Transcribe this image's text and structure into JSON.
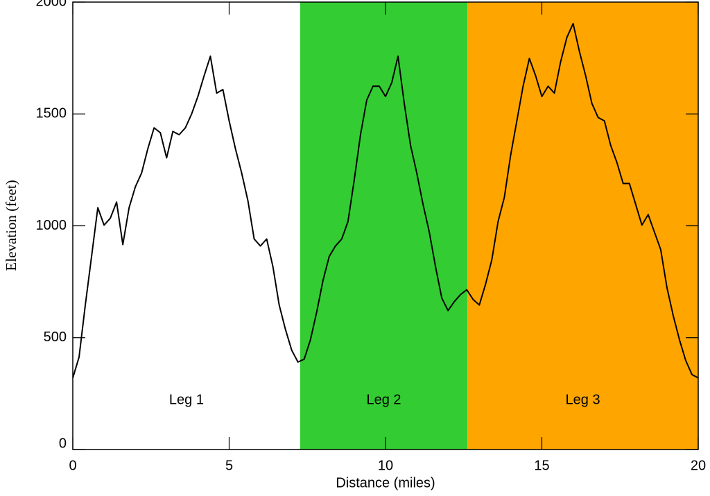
{
  "chart_data": {
    "type": "line",
    "xlabel": "Distance (miles)",
    "ylabel": "Elevation (feet)",
    "xlim": [
      0,
      20
    ],
    "ylim": [
      0,
      2000
    ],
    "xticks": [
      0,
      5,
      10,
      15,
      20
    ],
    "yticks": [
      0,
      500,
      1000,
      1500,
      2000
    ],
    "bands": [
      {
        "label": "Leg 1",
        "start": 0,
        "end": 7.27,
        "color": "#ffffff"
      },
      {
        "label": "Leg 2",
        "start": 7.27,
        "end": 12.62,
        "color": "#33cc33"
      },
      {
        "label": "Leg 3",
        "start": 12.62,
        "end": 20,
        "color": "#ffa500"
      }
    ],
    "x": [
      0,
      0.2,
      0.4,
      0.6,
      0.8,
      1,
      1.2,
      1.4,
      1.6,
      1.8,
      2,
      2.2,
      2.4,
      2.6,
      2.8,
      3,
      3.2,
      3.4,
      3.6,
      3.8,
      4,
      4.2,
      4.4,
      4.6,
      4.8,
      5,
      5.2,
      5.4,
      5.6,
      5.8,
      6,
      6.2,
      6.4,
      6.6,
      6.8,
      7,
      7.2,
      7.4,
      7.6,
      7.8,
      8,
      8.2,
      8.4,
      8.6,
      8.8,
      9,
      9.2,
      9.4,
      9.6,
      9.8,
      10,
      10.2,
      10.4,
      10.6,
      10.8,
      11,
      11.2,
      11.4,
      11.6,
      11.8,
      12,
      12.2,
      12.4,
      12.6,
      12.8,
      13,
      13.2,
      13.4,
      13.6,
      13.8,
      14,
      14.2,
      14.4,
      14.6,
      14.8,
      15,
      15.2,
      15.4,
      15.6,
      15.8,
      16,
      16.2,
      16.4,
      16.6,
      16.8,
      17,
      17.2,
      17.4,
      17.6,
      17.8,
      18,
      18.2,
      18.4,
      18.6,
      18.8,
      19,
      19.2,
      19.4,
      19.6,
      19.8,
      20
    ],
    "series": [
      {
        "name": "Elevation",
        "color": "#000000",
        "values": [
          320,
          413,
          646,
          863,
          1081,
          1003,
          1034,
          1106,
          916,
          1081,
          1174,
          1236,
          1345,
          1438,
          1416,
          1304,
          1422,
          1407,
          1438,
          1500,
          1578,
          1671,
          1758,
          1593,
          1609,
          1469,
          1345,
          1236,
          1112,
          941,
          910,
          941,
          817,
          646,
          537,
          444,
          391,
          404,
          491,
          615,
          755,
          863,
          910,
          941,
          1019,
          1205,
          1407,
          1562,
          1624,
          1624,
          1578,
          1640,
          1758,
          1547,
          1360,
          1236,
          1096,
          972,
          817,
          677,
          621,
          661,
          693,
          714,
          671,
          646,
          739,
          848,
          1019,
          1127,
          1314,
          1469,
          1624,
          1748,
          1671,
          1578,
          1624,
          1593,
          1733,
          1842,
          1904,
          1780,
          1671,
          1547,
          1484,
          1469,
          1360,
          1283,
          1189,
          1189,
          1096,
          1003,
          1050,
          972,
          894,
          724,
          599,
          491,
          398,
          335,
          320
        ]
      }
    ]
  }
}
